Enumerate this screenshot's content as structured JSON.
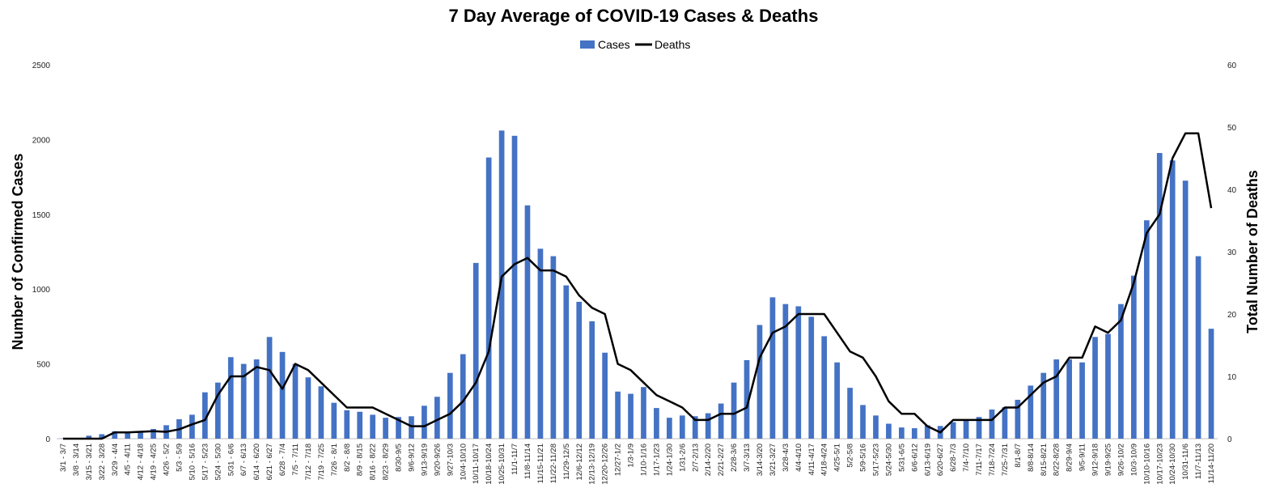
{
  "chart_data": {
    "type": "bar",
    "title": "7 Day Average of COVID-19 Cases & Deaths",
    "ylabel": "Number of Confirmed Cases",
    "y2label": "Total Number of Deaths",
    "ylim": [
      0,
      2500
    ],
    "y2lim": [
      0,
      60
    ],
    "yticks": [
      0,
      500,
      1000,
      1500,
      2000,
      2500
    ],
    "y2ticks": [
      0,
      10,
      20,
      30,
      40,
      50,
      60
    ],
    "legend_position": "top-center",
    "grid": false,
    "colors": {
      "cases": "#4472C4",
      "deaths": "#000000"
    },
    "categories": [
      "3/1 - 3/7",
      "3/8 - 3/14",
      "3/15 - 3/21",
      "3/22 - 3/28",
      "3/29 - 4/4",
      "4/5 - 4/11",
      "4/12 - 4/18",
      "4/19 - 4/25",
      "4/26 - 5/2",
      "5/3 - 5/9",
      "5/10 - 5/16",
      "5/17 - 5/23",
      "5/24 - 5/30",
      "5/31 - 6/6",
      "6/7 - 6/13",
      "6/14 - 6/20",
      "6/21 - 6/27",
      "6/28 - 7/4",
      "7/5 - 7/11",
      "7/12 - 7/18",
      "7/19 - 7/25",
      "7/26 - 8/1",
      "8/2 - 8/8",
      "8/9 - 8/15",
      "8/16 - 8/22",
      "8/23 - 8/29",
      "8/30-9/5",
      "9/6-9/12",
      "9/13-9/19",
      "9/20-9/26",
      "9/27-10/3",
      "10/4-10/10",
      "10/11-10/17",
      "10/18-10/24",
      "10/25-10/31",
      "11/1-11/7",
      "11/8-11/14",
      "11/15-11/21",
      "11/22-11/28",
      "11/29-12/5",
      "12/6-12/12",
      "12/13-12/19",
      "12/20-12/26",
      "12/27-1/2",
      "1/3-1/9",
      "1/10-1/16",
      "1/17-1/23",
      "1/24-1/30",
      "1/31-2/6",
      "2/7-2/13",
      "2/14-2/20",
      "2/21-2/27",
      "2/28-3/6",
      "3/7-3/13",
      "3/14-3/20",
      "3/21-3/27",
      "3/28-4/3",
      "4/4-4/10",
      "4/11-4/17",
      "4/18-4/24",
      "4/25-5/1",
      "5/2-5/8",
      "5/9-5/16",
      "5/17-5/23",
      "5/24-5/30",
      "5/31-6/5",
      "6/6-6/12",
      "6/13-6/19",
      "6/20-6/27",
      "6/28-7/3",
      "7/4-7/10",
      "7/11-7/17",
      "7/18-7/24",
      "7/25-7/31",
      "8/1-8/7",
      "8/8-8/14",
      "8/15-8/21",
      "8/22-8/28",
      "8/29-9/4",
      "9/5-9/11",
      "9/12-9/18",
      "9/19-9/25",
      "9/26-10/2",
      "10/3-10/9",
      "10/10-10/16",
      "10/17-10/23",
      "10/24-10/30",
      "10/31-11/6",
      "11/7-11/13",
      "11/14-11/20"
    ],
    "series": [
      {
        "name": "Cases",
        "kind": "bar",
        "axis": "left",
        "values": [
          2,
          5,
          20,
          30,
          50,
          40,
          40,
          65,
          90,
          130,
          160,
          310,
          375,
          545,
          500,
          530,
          680,
          580,
          500,
          410,
          350,
          240,
          190,
          180,
          160,
          140,
          145,
          150,
          220,
          280,
          440,
          565,
          1175,
          1880,
          2060,
          2025,
          1560,
          1270,
          1220,
          1025,
          915,
          785,
          575,
          315,
          300,
          345,
          205,
          140,
          155,
          150,
          170,
          235,
          375,
          525,
          760,
          945,
          900,
          885,
          815,
          685,
          510,
          340,
          225,
          155,
          100,
          75,
          70,
          90,
          85,
          110,
          130,
          145,
          195,
          210,
          260,
          355,
          440,
          530,
          530,
          510,
          680,
          700,
          900,
          1090,
          1460,
          1910,
          1860,
          1725,
          1220,
          735
        ]
      },
      {
        "name": "Deaths",
        "kind": "line",
        "axis": "right",
        "values": [
          0,
          0,
          0,
          0,
          1,
          1,
          1.1,
          1.2,
          1.1,
          1.5,
          2.3,
          3,
          7,
          10,
          10,
          11.5,
          11,
          8,
          12,
          11,
          9,
          7,
          5,
          5,
          5,
          4,
          3,
          2,
          2,
          3,
          4,
          6,
          9,
          14,
          26,
          28,
          29,
          27,
          27,
          26,
          23,
          21,
          20,
          12,
          11,
          9,
          7,
          6,
          5,
          3,
          3,
          4,
          4,
          5,
          13,
          17,
          18,
          20,
          20,
          20,
          17,
          14,
          13,
          10,
          6,
          4,
          4,
          2,
          1,
          3,
          3,
          3,
          3,
          5,
          5,
          7,
          9,
          10,
          13,
          13,
          18,
          17,
          19,
          25,
          33,
          36,
          45,
          49,
          49,
          37
        ]
      }
    ]
  }
}
